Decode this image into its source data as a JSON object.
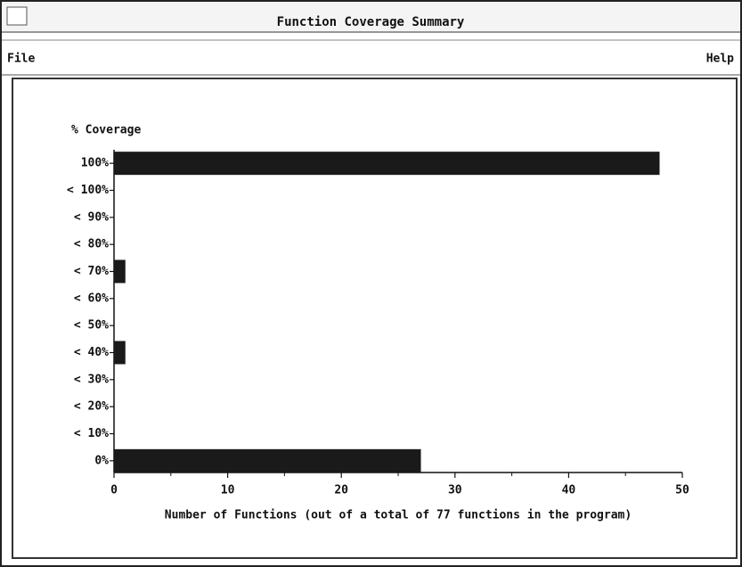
{
  "window": {
    "title": "Function Coverage Summary"
  },
  "menu": {
    "left": "File",
    "right": "Help"
  },
  "chart_data": {
    "type": "barh",
    "ylabel": "% Coverage",
    "xlabel": "Number of Functions (out of a total of 77 functions in the program)",
    "categories": [
      "100%",
      "< 100%",
      "< 90%",
      "< 80%",
      "< 70%",
      "< 60%",
      "< 50%",
      "< 40%",
      "< 30%",
      "< 20%",
      "< 10%",
      "0%"
    ],
    "values": [
      48,
      0,
      0,
      0,
      1,
      0,
      0,
      1,
      0,
      0,
      0,
      27
    ],
    "color": "#1a1a1a",
    "xlim": [
      0,
      50
    ],
    "xticks": [
      0,
      10,
      20,
      30,
      40,
      50
    ]
  }
}
